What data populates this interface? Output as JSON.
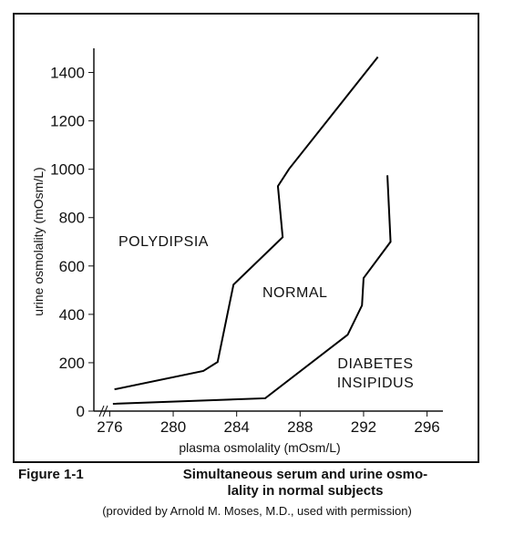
{
  "chart_data": {
    "type": "line",
    "x_label": "plasma osmolality (mOsm/L)",
    "y_label": "urine osmolality (mOsm/L)",
    "xlim": [
      275,
      297
    ],
    "xticks": [
      276,
      280,
      284,
      288,
      292,
      296
    ],
    "ylim": [
      0,
      1500
    ],
    "yticks": [
      0,
      200,
      400,
      600,
      800,
      1000,
      1200,
      1400
    ],
    "series": [
      {
        "color": "#000000",
        "x": [
          276.3,
          281.9,
          282.8,
          283.8,
          286.9,
          286.6,
          287.3,
          292.9
        ],
        "values": [
          90,
          166,
          203,
          523,
          719,
          930,
          1001,
          1464
        ]
      },
      {
        "color": "#000000",
        "x": [
          276.2,
          285.8,
          291.0,
          291.9,
          292.0,
          293.7,
          293.5
        ],
        "values": [
          30,
          53,
          316,
          437,
          550,
          700,
          975
        ]
      }
    ],
    "annotations": [
      "POLYDIPSIA",
      "NORMAL",
      "DIABETES",
      "INSIPIDUS"
    ],
    "caption": {
      "figure": "Figure 1-1",
      "title_lines": [
        "Simultaneous serum and urine osmo-",
        "lality in normal subjects"
      ],
      "credit": "(provided by Arnold M. Moses, M.D., used with permission)"
    }
  }
}
